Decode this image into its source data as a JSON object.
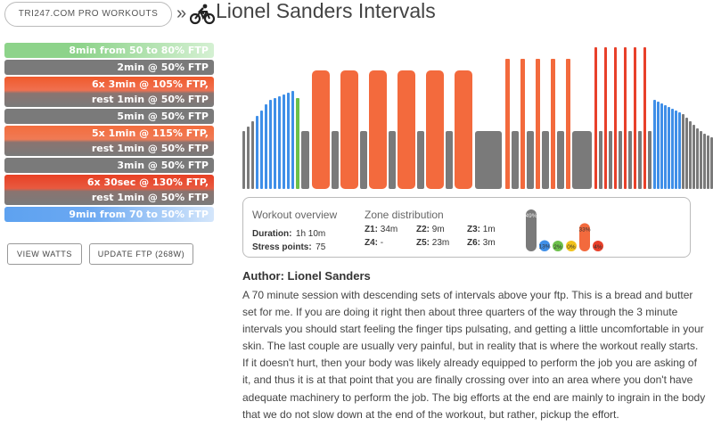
{
  "breadcrumb": {
    "link_label": "TRI247.COM PRO WORKOUTS",
    "separator": "»",
    "icon": "cyclist-icon"
  },
  "page_title": "Lionel Sanders Intervals",
  "intervals": [
    {
      "lines": [
        "8min from 50 to 80% FTP"
      ],
      "style": "warm"
    },
    {
      "lines": [
        "2min @ 50% FTP"
      ],
      "style": "grey"
    },
    {
      "lines": [
        "6x 3min @ 105% FTP,",
        "rest 1min @ 50% FTP"
      ],
      "style": "red1"
    },
    {
      "lines": [
        "5min @ 50% FTP"
      ],
      "style": "grey"
    },
    {
      "lines": [
        "5x 1min @ 115% FTP,",
        "rest 1min @ 50% FTP"
      ],
      "style": "red2"
    },
    {
      "lines": [
        "3min @ 50% FTP"
      ],
      "style": "grey"
    },
    {
      "lines": [
        "6x 30sec @ 130% FTP,",
        "rest 1min @ 50% FTP"
      ],
      "style": "red3"
    },
    {
      "lines": [
        "9min from 70 to 50% FTP"
      ],
      "style": "cool"
    }
  ],
  "buttons": {
    "view_watts": "VIEW WATTS",
    "update_ftp": "UPDATE FTP (268W)"
  },
  "overview": {
    "title": "Workout overview",
    "duration_label": "Duration:",
    "duration_value": "1h 10m",
    "stress_label": "Stress points:",
    "stress_value": "75",
    "zone_title": "Zone distribution",
    "zones": [
      {
        "label": "Z1:",
        "value": "34m"
      },
      {
        "label": "Z2:",
        "value": "9m"
      },
      {
        "label": "Z3:",
        "value": "1m"
      },
      {
        "label": "Z4:",
        "value": "-"
      },
      {
        "label": "Z5:",
        "value": "23m"
      },
      {
        "label": "Z6:",
        "value": "3m"
      }
    ],
    "zone_percents": [
      {
        "zone": "Z1",
        "percent": 49,
        "label": "49%",
        "color": "#7a7a7a"
      },
      {
        "zone": "Z2",
        "percent": 13,
        "label": "13%",
        "color": "#3f8fe8"
      },
      {
        "zone": "Z3",
        "percent": 2,
        "label": "2%",
        "color": "#6cc04a"
      },
      {
        "zone": "Z4",
        "percent": 0,
        "label": "0%",
        "color": "#f2c21b"
      },
      {
        "zone": "Z5",
        "percent": 33,
        "label": "33%",
        "color": "#f36a3d"
      },
      {
        "zone": "Z6",
        "percent": 4,
        "label": "4%",
        "color": "#e8402a"
      }
    ]
  },
  "colors": {
    "z1": "#7a7a7a",
    "z2": "#3f8fe8",
    "z3": "#6cc04a",
    "z5": "#f36a3d",
    "z6": "#e8402a"
  },
  "author": "Author: Lionel Sanders",
  "description": "A 70 minute session with descending sets of intervals above your ftp. This is a bread and butter set for me. If you are doing it right then about three quarters of the way through the 3 minute intervals you should start feeling the finger tips pulsating, and getting a little uncomfortable in your skin. The last couple are usually very painful, but in reality that is where the workout really starts. If it doesn't hurt, then your body was likely already equipped to perform the job you are asking of it, and thus it is at that point that you are finally crossing over into an area where you don't have adequate machinery to perform the job. The big efforts at the end are mainly to ingrain in the body that we do not slow down at the end of the workout, but rather, pickup the effort."
}
